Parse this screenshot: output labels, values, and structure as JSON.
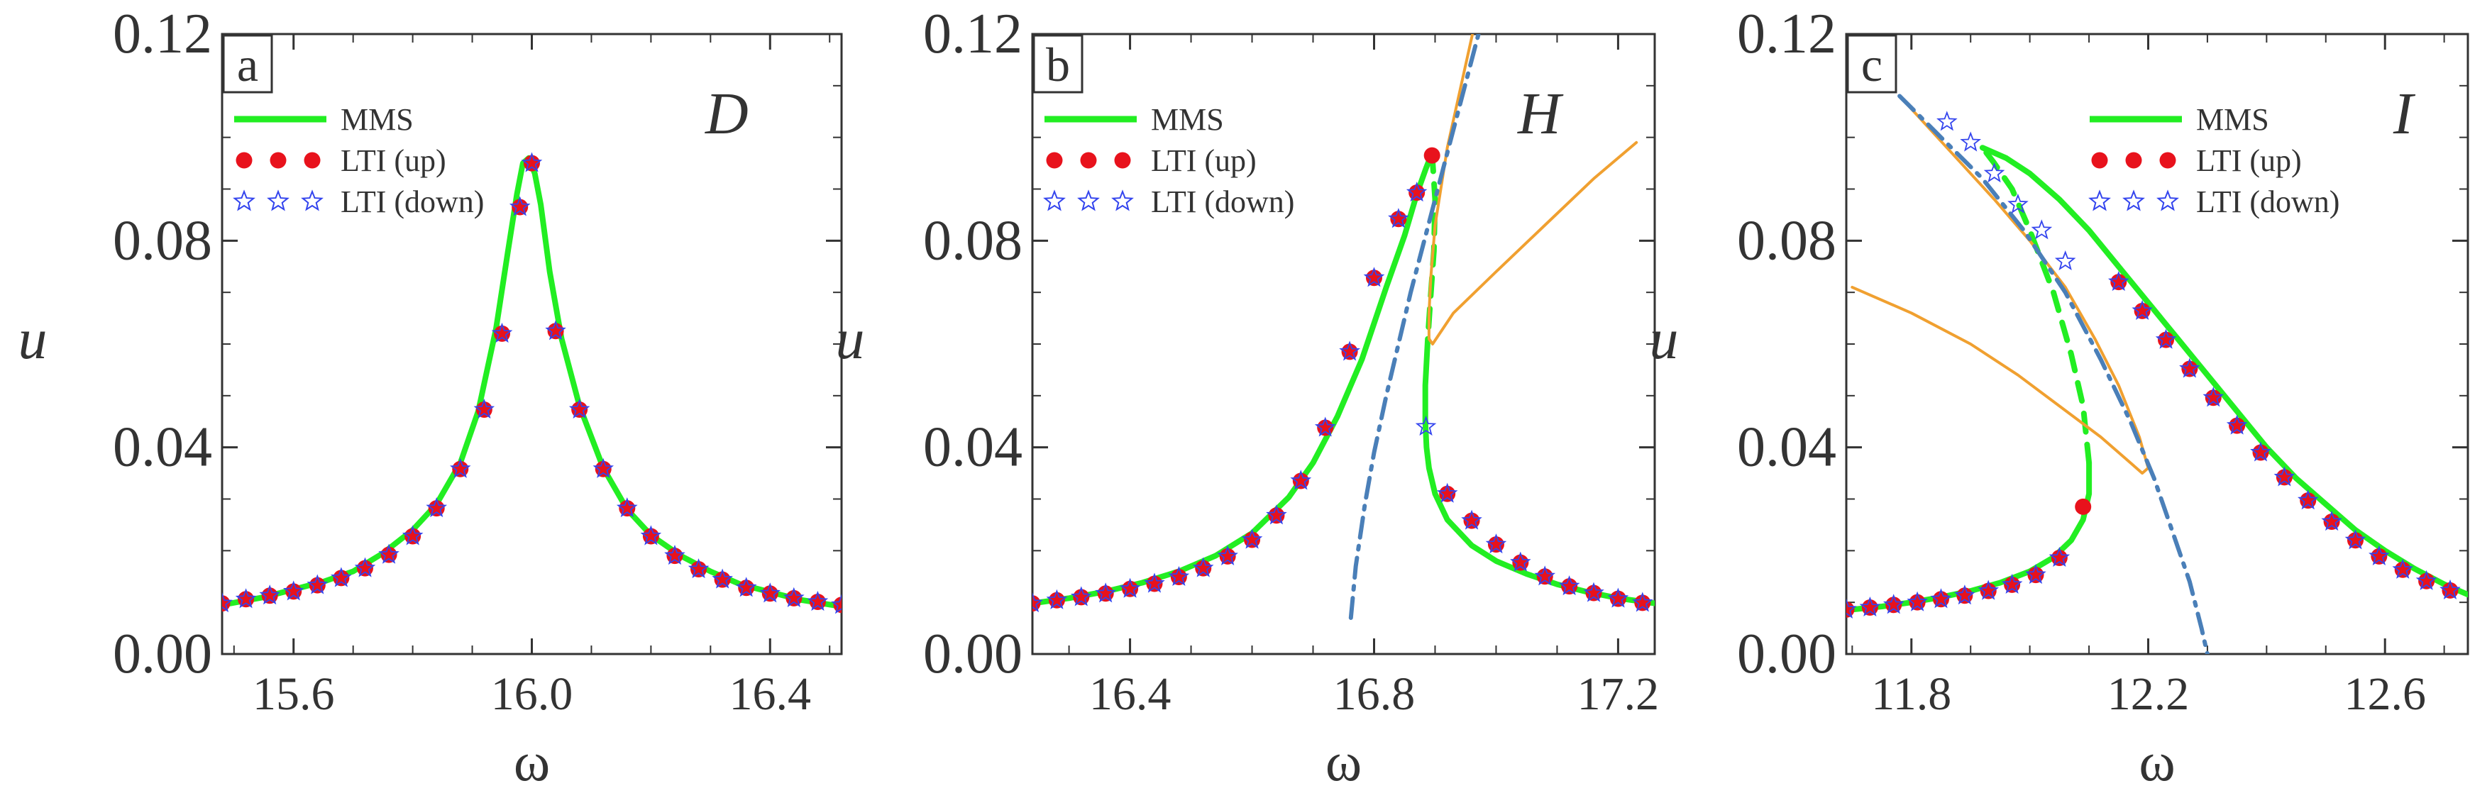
{
  "chart_data": [
    {
      "type": "line",
      "panel_label": "a",
      "case_label": "D",
      "xlabel": "ω",
      "ylabel": "u",
      "xlim": [
        15.48,
        16.52
      ],
      "ylim": [
        0.0,
        0.12
      ],
      "xticks": [
        "15.6",
        "16.0",
        "16.4"
      ],
      "xtick_values": [
        15.6,
        16.0,
        16.4
      ],
      "yticks": [
        "0.00",
        "0.04",
        "0.08",
        "0.12"
      ],
      "ytick_values": [
        0.0,
        0.04,
        0.08,
        0.12
      ],
      "legend": [
        "MMS",
        "LTI (up)",
        "LTI (down)"
      ],
      "legend_position": "top-left",
      "series": [
        {
          "name": "MMS stable branch",
          "style": "solid",
          "color": "#22ee22",
          "x": [
            15.48,
            15.55,
            15.6,
            15.65,
            15.7,
            15.75,
            15.8,
            15.84,
            15.88,
            15.91,
            15.94,
            15.96,
            15.975,
            15.985,
            15.995,
            16.005,
            16.015,
            16.03,
            16.05,
            16.08,
            16.12,
            16.16,
            16.2,
            16.25,
            16.3,
            16.35,
            16.4,
            16.45,
            16.52
          ],
          "y": [
            0.0095,
            0.011,
            0.0125,
            0.014,
            0.016,
            0.0195,
            0.024,
            0.029,
            0.037,
            0.047,
            0.063,
            0.078,
            0.089,
            0.095,
            0.096,
            0.093,
            0.087,
            0.074,
            0.061,
            0.048,
            0.036,
            0.028,
            0.023,
            0.019,
            0.016,
            0.0135,
            0.012,
            0.0105,
            0.0092
          ]
        },
        {
          "name": "LTI (up)",
          "style": "markers-dot",
          "color": "#e8121c",
          "x": [
            15.48,
            15.52,
            15.56,
            15.6,
            15.64,
            15.68,
            15.72,
            15.76,
            15.8,
            15.84,
            15.88,
            15.92,
            15.95,
            15.98,
            16.0,
            16.04,
            16.08,
            16.12,
            16.16,
            16.2,
            16.24,
            16.28,
            16.32,
            16.36,
            16.4,
            16.44,
            16.48,
            16.52
          ],
          "y": [
            0.0098,
            0.0106,
            0.0113,
            0.0121,
            0.0133,
            0.0147,
            0.0166,
            0.0192,
            0.0228,
            0.0282,
            0.0358,
            0.0473,
            0.062,
            0.0865,
            0.095,
            0.0625,
            0.0473,
            0.0358,
            0.0282,
            0.0228,
            0.019,
            0.0164,
            0.0144,
            0.0128,
            0.0117,
            0.0108,
            0.0101,
            0.0095
          ]
        },
        {
          "name": "LTI (down)",
          "style": "markers-star",
          "color": "#3344ee",
          "x": [
            15.48,
            15.52,
            15.56,
            15.6,
            15.64,
            15.68,
            15.72,
            15.76,
            15.8,
            15.84,
            15.88,
            15.92,
            15.95,
            15.98,
            16.0,
            16.04,
            16.08,
            16.12,
            16.16,
            16.2,
            16.24,
            16.28,
            16.32,
            16.36,
            16.4,
            16.44,
            16.48,
            16.52
          ],
          "y": [
            0.0098,
            0.0106,
            0.0113,
            0.0121,
            0.0133,
            0.0147,
            0.0166,
            0.0192,
            0.0228,
            0.0282,
            0.0358,
            0.0473,
            0.062,
            0.0865,
            0.095,
            0.0625,
            0.0473,
            0.0358,
            0.0282,
            0.0228,
            0.019,
            0.0164,
            0.0144,
            0.0128,
            0.0117,
            0.0108,
            0.0101,
            0.0095
          ]
        }
      ]
    },
    {
      "type": "line",
      "panel_label": "b",
      "case_label": "H",
      "xlabel": "ω",
      "ylabel": "u",
      "xlim": [
        16.24,
        17.26
      ],
      "ylim": [
        0.0,
        0.12
      ],
      "xticks": [
        "16.4",
        "16.8",
        "17.2"
      ],
      "xtick_values": [
        16.4,
        16.8,
        17.2
      ],
      "yticks": [
        "0.00",
        "0.04",
        "0.08",
        "0.12"
      ],
      "ytick_values": [
        0.0,
        0.04,
        0.08,
        0.12
      ],
      "legend": [
        "MMS",
        "LTI (up)",
        "LTI (down)"
      ],
      "legend_position": "top-left",
      "series": [
        {
          "name": "MMS stable upper branch",
          "style": "solid",
          "color": "#22ee22",
          "x": [
            16.24,
            16.3,
            16.36,
            16.42,
            16.48,
            16.54,
            16.6,
            16.66,
            16.7,
            16.74,
            16.78,
            16.82,
            16.85,
            16.87,
            16.885,
            16.895
          ],
          "y": [
            0.0098,
            0.0108,
            0.0121,
            0.0138,
            0.016,
            0.019,
            0.0234,
            0.0303,
            0.037,
            0.046,
            0.057,
            0.071,
            0.081,
            0.089,
            0.094,
            0.097
          ]
        },
        {
          "name": "MMS unstable branch",
          "style": "dashed",
          "color": "#22ee22",
          "x": [
            16.895,
            16.9,
            16.898,
            16.892,
            16.888
          ],
          "y": [
            0.097,
            0.088,
            0.078,
            0.068,
            0.061
          ]
        },
        {
          "name": "MMS stable lower branch",
          "style": "solid",
          "color": "#22ee22",
          "x": [
            16.888,
            16.884,
            16.884,
            16.886,
            16.89,
            16.9,
            16.92,
            16.96,
            17.0,
            17.05,
            17.1,
            17.15,
            17.2,
            17.26
          ],
          "y": [
            0.061,
            0.052,
            0.045,
            0.04,
            0.036,
            0.031,
            0.026,
            0.021,
            0.018,
            0.0155,
            0.0135,
            0.012,
            0.0108,
            0.0098
          ]
        },
        {
          "name": "Boundary curve 1",
          "style": "solid",
          "color": "#f0a030",
          "x": [
            16.98,
            16.95,
            16.92,
            16.9,
            16.893,
            16.89,
            16.89,
            16.896,
            16.93,
            17.0,
            17.08,
            17.16,
            17.23
          ],
          "y": [
            0.13,
            0.114,
            0.098,
            0.083,
            0.073,
            0.066,
            0.061,
            0.06,
            0.066,
            0.074,
            0.083,
            0.092,
            0.099
          ]
        },
        {
          "name": "Backbone curve",
          "style": "dashdot",
          "color": "#4a7fb8",
          "x": [
            16.762,
            16.77,
            16.785,
            16.8,
            16.82,
            16.84,
            16.86,
            16.88,
            16.9,
            16.92,
            16.94,
            16.96,
            16.98
          ],
          "y": [
            0.007,
            0.017,
            0.029,
            0.039,
            0.05,
            0.06,
            0.07,
            0.079,
            0.088,
            0.097,
            0.106,
            0.115,
            0.124
          ]
        },
        {
          "name": "LTI (up)",
          "style": "markers-dot",
          "color": "#e8121c",
          "x": [
            16.24,
            16.28,
            16.32,
            16.36,
            16.4,
            16.44,
            16.48,
            16.52,
            16.56,
            16.6,
            16.64,
            16.68,
            16.72,
            16.76,
            16.8,
            16.84,
            16.87,
            16.895,
            16.92,
            16.96,
            17.0,
            17.04,
            17.08,
            17.12,
            17.16,
            17.2,
            17.24
          ],
          "y": [
            0.0098,
            0.0104,
            0.011,
            0.0117,
            0.0126,
            0.0136,
            0.0149,
            0.0166,
            0.0189,
            0.0221,
            0.0268,
            0.0335,
            0.0438,
            0.0585,
            0.0728,
            0.0842,
            0.0893,
            0.0965,
            0.031,
            0.0258,
            0.0212,
            0.0177,
            0.015,
            0.0131,
            0.0118,
            0.0107,
            0.0099
          ]
        },
        {
          "name": "LTI (down)",
          "style": "markers-star",
          "color": "#3344ee",
          "x": [
            16.24,
            16.28,
            16.32,
            16.36,
            16.4,
            16.44,
            16.48,
            16.52,
            16.56,
            16.6,
            16.64,
            16.68,
            16.72,
            16.76,
            16.8,
            16.84,
            16.87,
            16.885,
            16.92,
            16.96,
            17.0,
            17.04,
            17.08,
            17.12,
            17.16,
            17.2,
            17.24
          ],
          "y": [
            0.0098,
            0.0104,
            0.011,
            0.0117,
            0.0126,
            0.0136,
            0.0149,
            0.0166,
            0.0189,
            0.0221,
            0.0268,
            0.0335,
            0.0438,
            0.0585,
            0.0728,
            0.0842,
            0.0893,
            0.044,
            0.031,
            0.0258,
            0.0212,
            0.0177,
            0.015,
            0.0131,
            0.0118,
            0.0107,
            0.0099
          ]
        }
      ]
    },
    {
      "type": "line",
      "panel_label": "c",
      "case_label": "I",
      "xlabel": "ω",
      "ylabel": "u",
      "xlim": [
        11.69,
        12.74
      ],
      "ylim": [
        0.0,
        0.12
      ],
      "xticks": [
        "11.8",
        "12.2",
        "12.6"
      ],
      "xtick_values": [
        11.8,
        12.2,
        12.6
      ],
      "yticks": [
        "0.00",
        "0.04",
        "0.08",
        "0.12"
      ],
      "ytick_values": [
        0.0,
        0.04,
        0.08,
        0.12
      ],
      "legend": [
        "MMS",
        "LTI (up)",
        "LTI (down)"
      ],
      "legend_position": "top-right",
      "series": [
        {
          "name": "MMS stable lower branch",
          "style": "solid",
          "color": "#22ee22",
          "x": [
            11.69,
            11.75,
            11.8,
            11.85,
            11.9,
            11.95,
            12.0,
            12.04,
            12.07,
            12.09,
            12.1,
            12.1
          ],
          "y": [
            0.0085,
            0.0092,
            0.01,
            0.011,
            0.0122,
            0.0138,
            0.016,
            0.0187,
            0.022,
            0.026,
            0.031,
            0.037
          ]
        },
        {
          "name": "MMS unstable branch",
          "style": "dashed",
          "color": "#22ee22",
          "x": [
            12.1,
            12.09,
            12.07,
            12.04,
            12.0,
            11.97,
            11.94,
            11.92
          ],
          "y": [
            0.037,
            0.048,
            0.058,
            0.07,
            0.082,
            0.09,
            0.095,
            0.098
          ]
        },
        {
          "name": "MMS stable upper branch",
          "style": "solid",
          "color": "#22ee22",
          "x": [
            11.92,
            11.96,
            12.0,
            12.05,
            12.1,
            12.15,
            12.2,
            12.25,
            12.3,
            12.35,
            12.4,
            12.45,
            12.5,
            12.55,
            12.6,
            12.65,
            12.7,
            12.74
          ],
          "y": [
            0.098,
            0.096,
            0.093,
            0.088,
            0.082,
            0.075,
            0.068,
            0.061,
            0.054,
            0.047,
            0.04,
            0.034,
            0.029,
            0.024,
            0.02,
            0.0165,
            0.0135,
            0.0115
          ]
        },
        {
          "name": "Boundary curve 1",
          "style": "solid",
          "color": "#f0a030",
          "x": [
            11.78,
            11.86,
            11.94,
            12.0,
            12.06,
            12.11,
            12.15,
            12.185,
            12.2,
            12.19,
            12.17,
            12.12,
            12.05,
            11.98,
            11.9,
            11.8,
            11.7
          ],
          "y": [
            0.108,
            0.098,
            0.088,
            0.08,
            0.071,
            0.061,
            0.052,
            0.042,
            0.036,
            0.035,
            0.037,
            0.042,
            0.048,
            0.054,
            0.06,
            0.066,
            0.071
          ]
        },
        {
          "name": "Backbone curve",
          "style": "dashdot",
          "color": "#4a7fb8",
          "x": [
            11.78,
            11.85,
            11.92,
            11.99,
            12.06,
            12.12,
            12.17,
            12.21,
            12.24,
            12.27,
            12.29,
            12.3
          ],
          "y": [
            0.108,
            0.1,
            0.092,
            0.082,
            0.07,
            0.057,
            0.045,
            0.034,
            0.024,
            0.014,
            0.005,
            0.0
          ]
        },
        {
          "name": "LTI (up)",
          "style": "markers-dot",
          "color": "#e8121c",
          "x": [
            11.69,
            11.73,
            11.77,
            11.81,
            11.85,
            11.89,
            11.93,
            11.97,
            12.01,
            12.05,
            12.09,
            12.15,
            12.19,
            12.23,
            12.27,
            12.31,
            12.35,
            12.39,
            12.43,
            12.47,
            12.51,
            12.55,
            12.59,
            12.63,
            12.67,
            12.71
          ],
          "y": [
            0.0086,
            0.009,
            0.0095,
            0.01,
            0.0106,
            0.0113,
            0.0122,
            0.0134,
            0.0153,
            0.0186,
            0.0285,
            0.072,
            0.0664,
            0.0608,
            0.0552,
            0.0496,
            0.0442,
            0.039,
            0.0342,
            0.0297,
            0.0256,
            0.022,
            0.0189,
            0.0163,
            0.0141,
            0.0123
          ]
        },
        {
          "name": "LTI (down)",
          "style": "markers-star",
          "color": "#3344ee",
          "x": [
            11.69,
            11.73,
            11.77,
            11.81,
            11.85,
            11.89,
            11.93,
            11.97,
            12.01,
            12.05,
            12.15,
            12.19,
            12.23,
            12.27,
            12.31,
            12.35,
            12.39,
            12.43,
            12.47,
            12.51,
            12.55,
            12.59,
            12.63,
            12.67,
            12.71,
            11.86,
            11.9,
            11.94,
            11.98,
            12.02,
            12.06
          ],
          "y": [
            0.0086,
            0.009,
            0.0095,
            0.01,
            0.0106,
            0.0113,
            0.0122,
            0.0134,
            0.0153,
            0.0186,
            0.072,
            0.0664,
            0.0608,
            0.0552,
            0.0496,
            0.0442,
            0.039,
            0.0342,
            0.0297,
            0.0256,
            0.022,
            0.0189,
            0.0163,
            0.0141,
            0.0123,
            0.103,
            0.099,
            0.093,
            0.087,
            0.082,
            0.076
          ]
        }
      ]
    }
  ]
}
